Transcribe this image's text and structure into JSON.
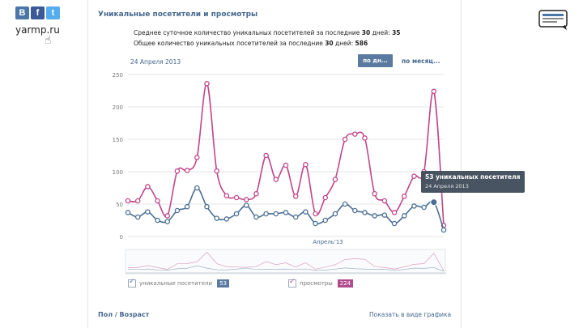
{
  "brand": {
    "social": [
      {
        "name": "vk",
        "glyph": "B",
        "color": "#4a76a8"
      },
      {
        "name": "facebook",
        "glyph": "f",
        "color": "#3b5998"
      },
      {
        "name": "twitter",
        "glyph": "t",
        "color": "#55acee"
      }
    ],
    "site": "yarmp.ru"
  },
  "header": {
    "title": "Уникальные посетители и просмотры",
    "stat1_prefix": "Среднее суточное количество уникальных посетителей за последние ",
    "stat1_days": "30",
    "stat1_mid": " дней: ",
    "stat1_value": "35",
    "stat2_prefix": "Общее количество уникальных посетителей за последние ",
    "stat2_days": "30",
    "stat2_mid": " дней: ",
    "stat2_value": "586"
  },
  "controls": {
    "date": "24 Апреля 2013",
    "by_day": "по дн...",
    "by_month": "по месяц..."
  },
  "tooltip": {
    "line1": "53 уникальных посетителя",
    "line2": "24 Апреля 2013"
  },
  "legend": [
    {
      "label": "уникальные посетители",
      "count": "53",
      "color": "#5b7aa0"
    },
    {
      "label": "просмотры",
      "count": "224",
      "color": "#b04b8e"
    }
  ],
  "footer": {
    "left": "Пол / Возраст",
    "right": "Показать в виде графика"
  },
  "chart_data": {
    "type": "line",
    "x_tick_labels": [
      "Апрель'13"
    ],
    "y_ticks": [
      0,
      50,
      100,
      150,
      200,
      250
    ],
    "ylim": [
      0,
      250
    ],
    "grid": true,
    "series": [
      {
        "name": "просмотры",
        "color": "#c0468b",
        "values": [
          55,
          55,
          77,
          55,
          32,
          101,
          102,
          122,
          236,
          101,
          63,
          60,
          57,
          66,
          125,
          88,
          110,
          62,
          111,
          35,
          60,
          88,
          150,
          158,
          152,
          66,
          55,
          37,
          62,
          93,
          100,
          224,
          17
        ]
      },
      {
        "name": "уникальные посетители",
        "color": "#4a6f94",
        "values": [
          37,
          30,
          38,
          25,
          23,
          40,
          46,
          75,
          46,
          28,
          27,
          35,
          48,
          30,
          35,
          35,
          37,
          30,
          38,
          20,
          25,
          35,
          50,
          40,
          37,
          32,
          33,
          20,
          32,
          47,
          45,
          53,
          10
        ]
      }
    ]
  }
}
